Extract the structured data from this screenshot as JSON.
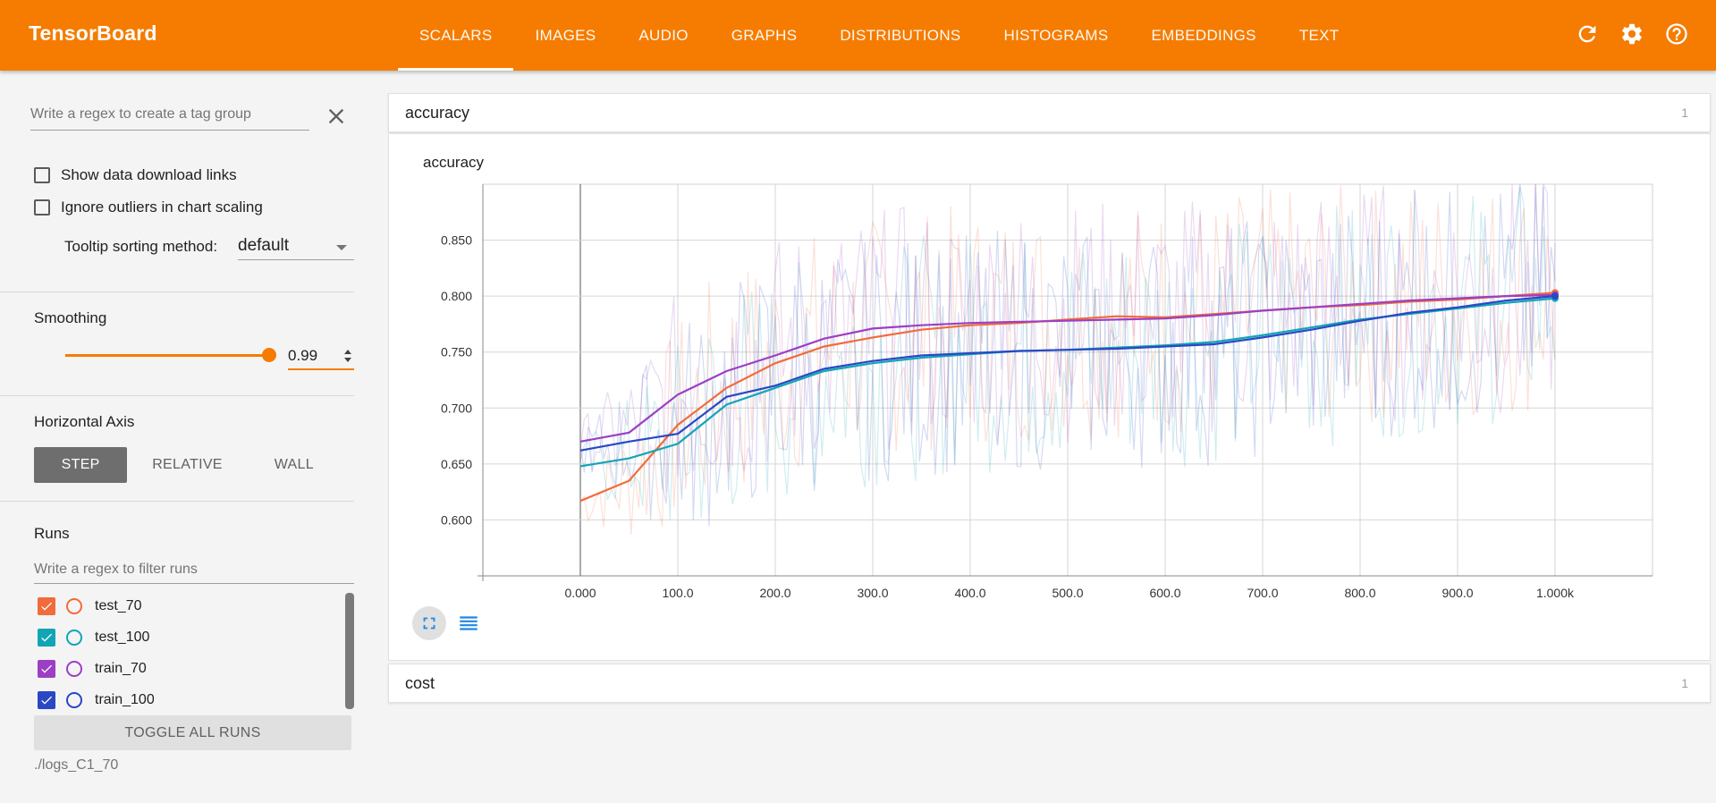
{
  "app": {
    "title": "TensorBoard"
  },
  "tabs": [
    {
      "label": "SCALARS",
      "active": true
    },
    {
      "label": "IMAGES"
    },
    {
      "label": "AUDIO"
    },
    {
      "label": "GRAPHS"
    },
    {
      "label": "DISTRIBUTIONS"
    },
    {
      "label": "HISTOGRAMS"
    },
    {
      "label": "EMBEDDINGS"
    },
    {
      "label": "TEXT"
    }
  ],
  "sidebar": {
    "tag_regex_placeholder": "Write a regex to create a tag group",
    "show_download_links": "Show data download links",
    "ignore_outliers": "Ignore outliers in chart scaling",
    "tooltip_sorting_label": "Tooltip sorting method:",
    "tooltip_sorting_value": "default",
    "smoothing_title": "Smoothing",
    "smoothing_value": "0.99",
    "smoothing_level": 0.99,
    "horizontal_axis_title": "Horizontal Axis",
    "axis_options": [
      "STEP",
      "RELATIVE",
      "WALL"
    ],
    "axis_selected": "STEP",
    "runs_title": "Runs",
    "runs_filter_placeholder": "Write a regex to filter runs",
    "runs": [
      {
        "name": "test_70",
        "color": "#f26b3a",
        "checked": true
      },
      {
        "name": "test_100",
        "color": "#12a5b6",
        "checked": true
      },
      {
        "name": "train_70",
        "color": "#9c3fc4",
        "checked": true
      },
      {
        "name": "train_100",
        "color": "#2948c4",
        "checked": true
      }
    ],
    "toggle_all": "TOGGLE ALL RUNS",
    "log_path": "./logs_C1_70"
  },
  "cards": {
    "accuracy": {
      "title": "accuracy",
      "count": "1"
    },
    "cost": {
      "title": "cost",
      "count": "1"
    }
  },
  "chart_data": {
    "type": "line",
    "title": "accuracy",
    "xlabel": "",
    "ylabel": "",
    "xlim": [
      -100,
      1100
    ],
    "ylim": [
      0.55,
      0.9
    ],
    "x_ticks": [
      "0.000",
      "100.0",
      "200.0",
      "300.0",
      "400.0",
      "500.0",
      "600.0",
      "700.0",
      "800.0",
      "900.0",
      "1.000k"
    ],
    "y_ticks": [
      "0.600",
      "0.650",
      "0.700",
      "0.750",
      "0.800",
      "0.850"
    ],
    "grid": true,
    "x": [
      0,
      50,
      100,
      150,
      200,
      250,
      300,
      350,
      400,
      450,
      500,
      550,
      600,
      650,
      700,
      750,
      800,
      850,
      900,
      950,
      1000
    ],
    "series": [
      {
        "name": "test_70",
        "color": "#f26b3a",
        "values": [
          0.617,
          0.635,
          0.685,
          0.718,
          0.74,
          0.755,
          0.763,
          0.77,
          0.774,
          0.776,
          0.779,
          0.782,
          0.781,
          0.784,
          0.787,
          0.79,
          0.792,
          0.795,
          0.797,
          0.8,
          0.803
        ]
      },
      {
        "name": "test_100",
        "color": "#12a5b6",
        "values": [
          0.648,
          0.655,
          0.668,
          0.703,
          0.718,
          0.733,
          0.74,
          0.745,
          0.748,
          0.751,
          0.752,
          0.754,
          0.756,
          0.759,
          0.765,
          0.772,
          0.779,
          0.784,
          0.789,
          0.794,
          0.798
        ]
      },
      {
        "name": "train_70",
        "color": "#9c3fc4",
        "values": [
          0.67,
          0.678,
          0.712,
          0.733,
          0.747,
          0.762,
          0.771,
          0.774,
          0.776,
          0.777,
          0.778,
          0.779,
          0.78,
          0.783,
          0.787,
          0.79,
          0.793,
          0.796,
          0.798,
          0.8,
          0.801
        ]
      },
      {
        "name": "train_100",
        "color": "#2948c4",
        "values": [
          0.662,
          0.67,
          0.677,
          0.71,
          0.72,
          0.735,
          0.742,
          0.747,
          0.749,
          0.751,
          0.752,
          0.753,
          0.755,
          0.757,
          0.763,
          0.77,
          0.778,
          0.785,
          0.79,
          0.796,
          0.8
        ]
      }
    ]
  },
  "icons": {
    "refresh": "refresh-icon",
    "settings": "gear-icon",
    "help": "help-icon",
    "fullscreen": "fullscreen-icon",
    "legend": "legend-list-icon",
    "clear": "close-icon"
  }
}
